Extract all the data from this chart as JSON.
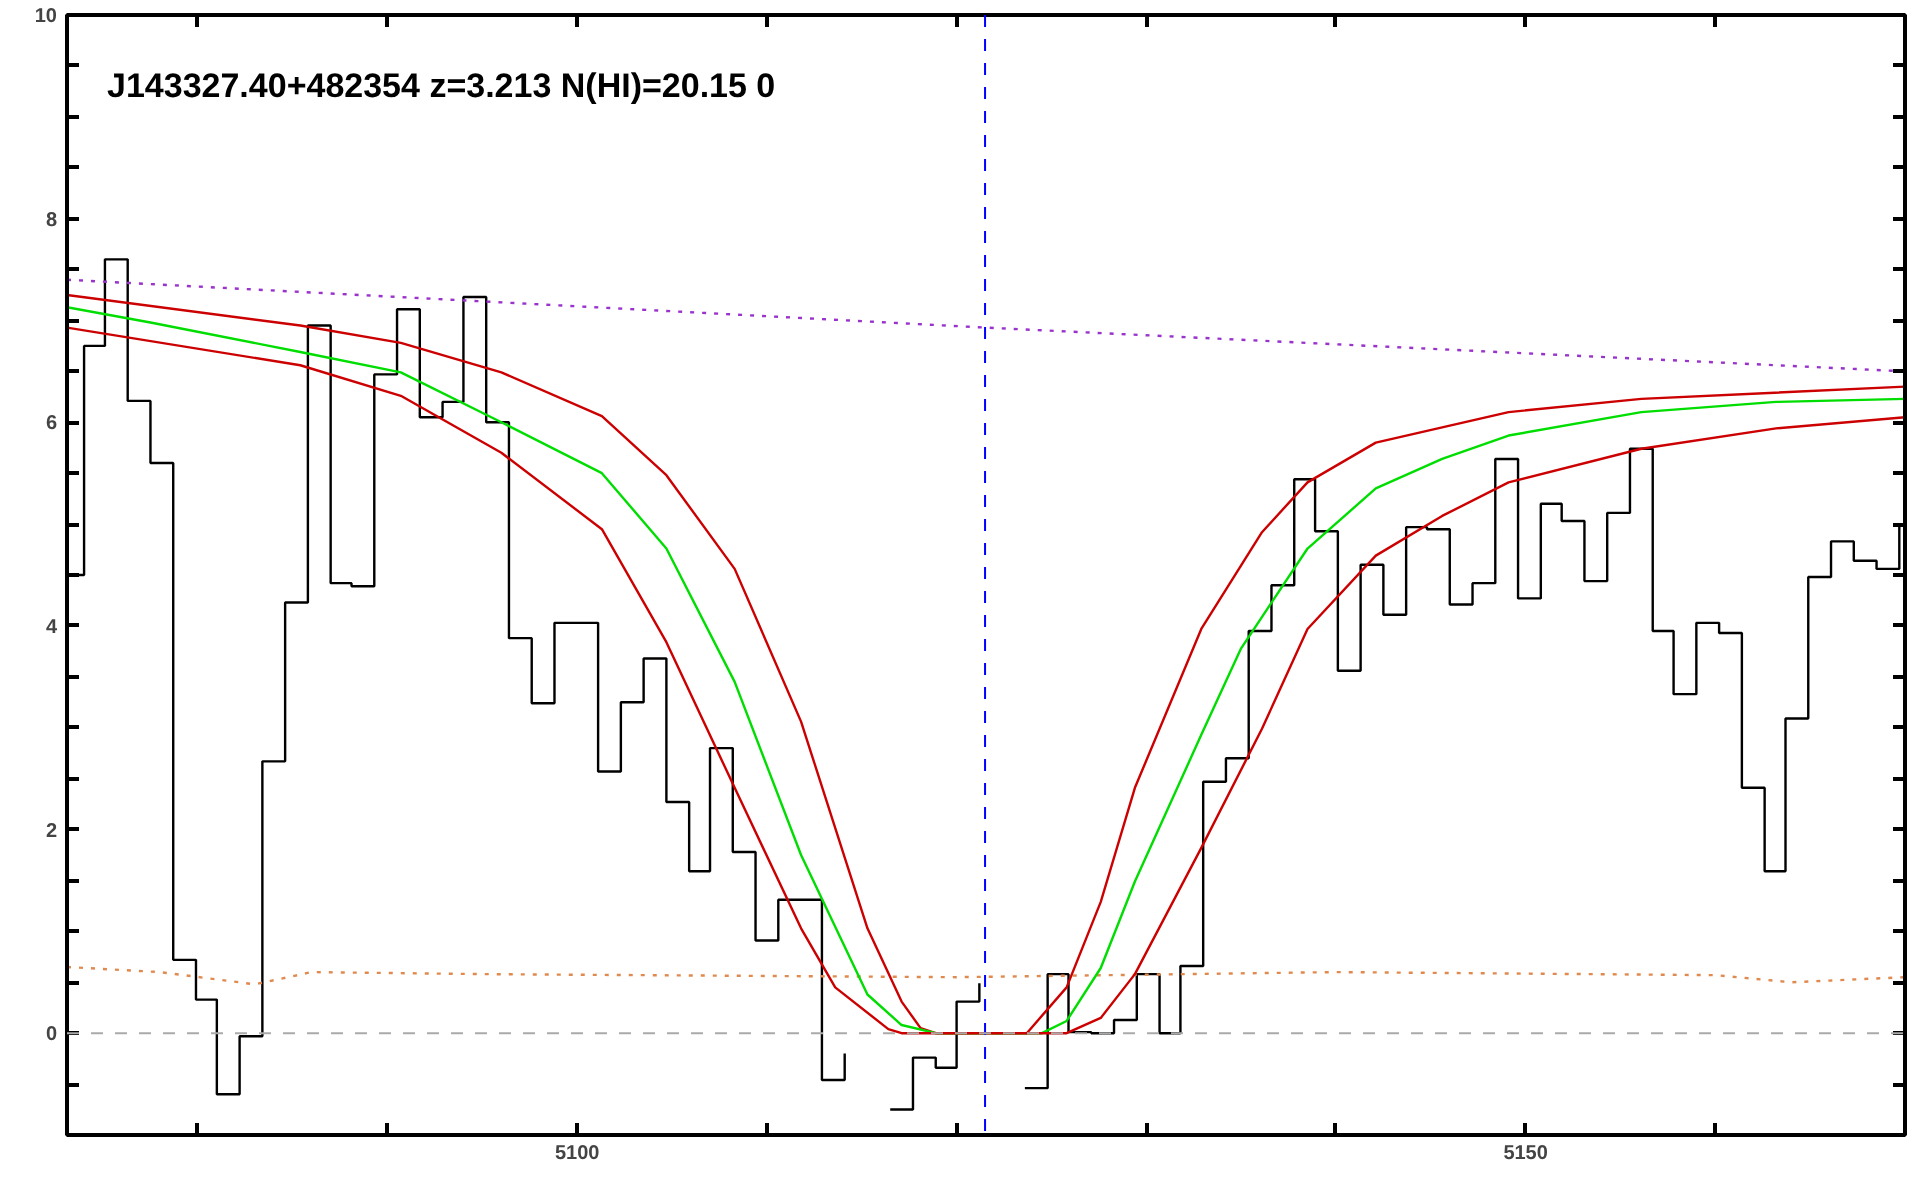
{
  "chart_data": {
    "type": "line",
    "title": "J143327.40+482354 z=3.213 N(HI)=20.15 0",
    "xlim": [
      5073.1,
      5170
    ],
    "ylim": [
      -1,
      10
    ],
    "xticks": [
      {
        "value": 5080,
        "label": null
      },
      {
        "value": 5090,
        "label": null
      },
      5100,
      {
        "value": 5110,
        "label": null
      },
      {
        "value": 5120,
        "label": null
      },
      {
        "value": 5130,
        "label": null
      },
      {
        "value": 5140,
        "label": null
      },
      5150,
      {
        "value": 5160,
        "label": null
      }
    ],
    "yticks": [
      0,
      {
        "value": 0.5,
        "label": null
      },
      {
        "value": 1,
        "label": null
      },
      {
        "value": 1.5,
        "label": null
      },
      2,
      {
        "value": 2.5,
        "label": null
      },
      {
        "value": 3,
        "label": null
      },
      {
        "value": 3.5,
        "label": null
      },
      4,
      {
        "value": 4.5,
        "label": null
      },
      {
        "value": 5,
        "label": null
      },
      {
        "value": 5.5,
        "label": null
      },
      6,
      {
        "value": 6.5,
        "label": null
      },
      {
        "value": 7,
        "label": null
      },
      {
        "value": 7.5,
        "label": null
      },
      8,
      {
        "value": 8.5,
        "label": null
      },
      {
        "value": 9,
        "label": null
      },
      {
        "value": 9.5,
        "label": null
      },
      10,
      {
        "value": -0.5,
        "label": null
      }
    ],
    "grid": false,
    "ref_lines": [
      {
        "axis": "x",
        "value": 5121.5,
        "color": "#0000ff",
        "line_style": "dashed"
      },
      {
        "axis": "y",
        "value": 0,
        "color": "#aaaaaa",
        "line_style": "dashed"
      }
    ],
    "series": [
      {
        "type": "step",
        "color": "#000000",
        "x": [
          5073.1,
          5074.0,
          5075.1,
          5076.3,
          5077.5,
          5078.7,
          5079.9,
          5081.0,
          5082.2,
          5083.4,
          5084.6,
          5085.8,
          5087.0,
          5088.1,
          5089.3,
          5090.5,
          5091.7,
          5092.9,
          5094.0,
          5095.2,
          5096.4,
          5097.6,
          5098.8,
          5099.9,
          5101.1,
          5102.3,
          5103.5,
          5104.7,
          5105.9,
          5107.0,
          5108.2,
          5109.4,
          5110.6,
          5111.8,
          5112.9,
          5114.1,
          5115.3,
          5116.5,
          5117.7,
          5118.9,
          5120.0,
          5121.2,
          5122.4,
          5123.6,
          5124.8,
          5125.9,
          5127.1,
          5128.3,
          5129.5,
          5130.7,
          5131.8,
          5133.0,
          5134.2,
          5135.4,
          5136.6,
          5137.8,
          5138.9,
          5140.1,
          5141.3,
          5142.5,
          5143.7,
          5144.8,
          5146.0,
          5147.2,
          5148.4,
          5149.6,
          5150.8,
          5151.9,
          5153.1,
          5154.3,
          5155.5,
          5156.7,
          5157.8,
          5159.0,
          5160.2,
          5161.4,
          5162.6,
          5163.7,
          5164.9,
          5166.1,
          5167.3,
          5168.5,
          5169.7,
          5170
        ],
        "values": [
          4.5,
          6.75,
          7.6,
          6.21,
          5.6,
          0.72,
          0.33,
          -0.6,
          -0.03,
          2.67,
          4.23,
          6.95,
          4.42,
          4.39,
          6.47,
          7.11,
          6.05,
          6.2,
          7.23,
          6.0,
          3.88,
          3.24,
          4.03,
          4.03,
          2.57,
          3.25,
          3.68,
          2.27,
          1.59,
          2.8,
          1.78,
          0.91,
          1.31,
          1.31,
          -0.46,
          -0.2,
          null,
          -0.75,
          -0.24,
          -0.34,
          0.31,
          0.49,
          null,
          -0.54,
          0.58,
          0.01,
          0.0,
          0.13,
          0.58,
          0.0,
          0.66,
          2.47,
          2.7,
          3.95,
          4.4,
          5.44,
          4.93,
          3.56,
          4.6,
          4.11,
          4.97,
          4.95,
          4.21,
          4.42,
          5.64,
          4.27,
          5.2,
          5.03,
          4.44,
          5.11,
          5.74,
          3.95,
          3.33,
          4.03,
          3.93,
          2.41,
          1.59,
          3.09,
          4.48,
          4.83,
          4.64,
          4.56,
          4.99,
          4.99
        ]
      },
      {
        "color": "#9933cc",
        "line_style": "dotted",
        "x": [
          5073.1,
          5121.5,
          5170
        ],
        "values": [
          7.4,
          6.93,
          6.5
        ]
      },
      {
        "color": "#e08a50",
        "line_style": "dotted",
        "x": [
          5073.1,
          5078,
          5083,
          5086,
          5095,
          5120,
          5140,
          5160,
          5164,
          5170
        ],
        "values": [
          0.65,
          0.6,
          0.48,
          0.6,
          0.58,
          0.55,
          0.6,
          0.57,
          0.5,
          0.55
        ]
      },
      {
        "color": "#cc0000",
        "x": [
          5073.1,
          5085.4,
          5090.7,
          5096.0,
          5101.3,
          5104.7,
          5108.3,
          5111.8,
          5115.3,
          5117.1,
          5118.1,
          5118.9,
          5123.7,
          5125.8,
          5127.6,
          5129.4,
          5132.9,
          5136.1,
          5138.5,
          5142.1,
          5149.1,
          5156.1,
          5170
        ],
        "values": [
          7.25,
          6.95,
          6.78,
          6.49,
          6.06,
          5.48,
          4.56,
          3.06,
          1.03,
          0.31,
          0.05,
          0,
          0,
          0.45,
          1.29,
          2.41,
          3.97,
          4.92,
          5.41,
          5.8,
          6.1,
          6.23,
          6.35
        ]
      },
      {
        "color": "#00dd00",
        "x": [
          5073.1,
          5077.5,
          5085.4,
          5090.7,
          5096.0,
          5101.3,
          5104.7,
          5108.3,
          5111.8,
          5115.3,
          5117.1,
          5118.9,
          5124.5,
          5125.8,
          5127.6,
          5129.4,
          5132.9,
          5135.0,
          5138.5,
          5142.1,
          5145.6,
          5149.1,
          5156.1,
          5163.2,
          5170
        ],
        "values": [
          7.13,
          6.98,
          6.69,
          6.49,
          6.0,
          5.5,
          4.76,
          3.45,
          1.75,
          0.38,
          0.08,
          0,
          0,
          0.12,
          0.64,
          1.49,
          2.93,
          3.78,
          4.76,
          5.35,
          5.64,
          5.87,
          6.1,
          6.2,
          6.23
        ]
      },
      {
        "color": "#cc0000",
        "x": [
          5073.1,
          5085.4,
          5090.7,
          5096.0,
          5101.3,
          5104.7,
          5108.3,
          5111.8,
          5113.6,
          5116.4,
          5117.1,
          5125.8,
          5127.6,
          5129.4,
          5132.9,
          5136.1,
          5138.5,
          5142.1,
          5145.6,
          5149.1,
          5156.1,
          5163.2,
          5170
        ],
        "values": [
          6.93,
          6.56,
          6.26,
          5.7,
          4.95,
          3.84,
          2.41,
          1.03,
          0.45,
          0.04,
          0,
          0,
          0.15,
          0.58,
          1.82,
          2.99,
          3.97,
          4.69,
          5.08,
          5.41,
          5.74,
          5.94,
          6.05
        ]
      }
    ]
  }
}
